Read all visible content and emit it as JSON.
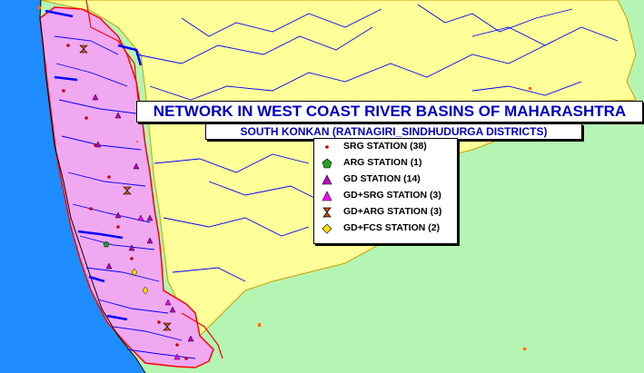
{
  "map": {
    "title": "NETWORK IN WEST COAST RIVER BASINS OF MAHARASHTRA",
    "subtitle": "SOUTH KONKAN (RATNAGIRI_SINDHUDURGA DISTRICTS)",
    "colors": {
      "sea": "#1e8cff",
      "land": "#b4f5b4",
      "maharashtra": "#ffff99",
      "konkan_basin": "#f0a8f0",
      "rivers": "#0000ff",
      "boundary": "#ff0000",
      "title_text": "#0000c8"
    }
  },
  "legend": {
    "items": [
      {
        "label": "SRG STATION (38)",
        "icon": "small-red-dot-icon",
        "color": "#c80000"
      },
      {
        "label": "ARG STATION (1)",
        "icon": "green-pentagon-icon",
        "color": "#22a022"
      },
      {
        "label": "GD STATION (14)",
        "icon": "purple-triangle-icon",
        "color": "#c000c0"
      },
      {
        "label": "GD+SRG STATION (3)",
        "icon": "magenta-triangle-icon",
        "color": "#ff00ff"
      },
      {
        "label": "GD+ARG STATION (3)",
        "icon": "hourglass-icon",
        "color": "#d05000"
      },
      {
        "label": "GD+FCS STATION (2)",
        "icon": "yellow-diamond-icon",
        "color": "#ffdd00"
      }
    ]
  }
}
